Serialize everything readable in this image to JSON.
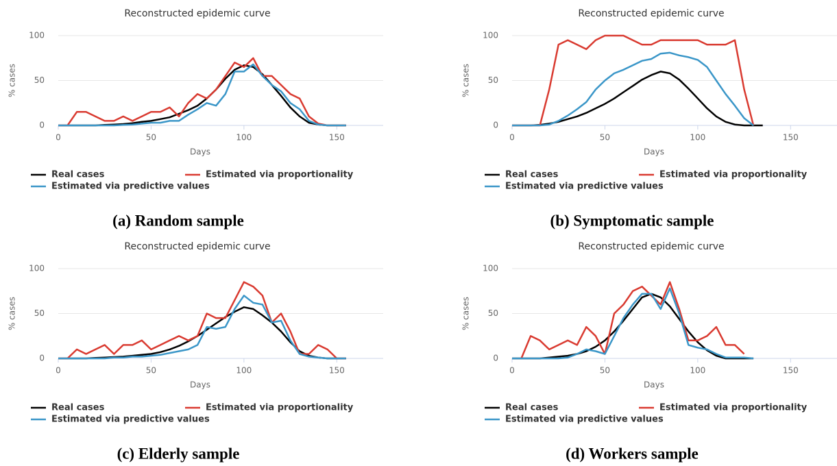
{
  "chart_data": [
    {
      "type": "line",
      "title": "Reconstructed epidemic curve",
      "x_label": "Days",
      "y_label": "% cases",
      "caption": "(a) Random sample",
      "x": [
        0,
        5,
        10,
        15,
        20,
        25,
        30,
        35,
        40,
        45,
        50,
        55,
        60,
        65,
        70,
        75,
        80,
        85,
        90,
        95,
        100,
        105,
        110,
        115,
        120,
        125,
        130,
        135,
        140,
        145,
        150,
        155
      ],
      "xlim": [
        0,
        175
      ],
      "xticks": [
        0,
        50,
        100,
        150
      ],
      "ylim": [
        0,
        100
      ],
      "yticks": [
        0,
        50,
        100
      ],
      "grid": true,
      "series": [
        {
          "name": "Real cases",
          "color": "#000000",
          "values": [
            0,
            0,
            0,
            0,
            0,
            0.5,
            1,
            1.5,
            2.5,
            4,
            5,
            7,
            9,
            13,
            17,
            22,
            30,
            40,
            52,
            62,
            67,
            65,
            57,
            45,
            33,
            20,
            10,
            3,
            1,
            0,
            0,
            0
          ]
        },
        {
          "name": "Estimated via proportionality",
          "color": "#d93a30",
          "values": [
            0,
            0,
            15,
            15,
            10,
            5,
            5,
            10,
            5,
            10,
            15,
            15,
            20,
            10,
            25,
            35,
            30,
            40,
            55,
            70,
            65,
            75,
            55,
            55,
            45,
            35,
            30,
            10,
            2,
            0,
            0,
            0
          ]
        },
        {
          "name": "Estimated via predictive values",
          "color": "#3a96c8",
          "values": [
            0,
            0,
            0,
            0,
            0,
            0,
            0,
            0.5,
            1,
            2,
            3,
            3,
            5,
            5,
            12,
            18,
            25,
            22,
            35,
            60,
            60,
            68,
            55,
            45,
            38,
            25,
            18,
            5,
            1,
            0,
            0,
            0
          ]
        }
      ]
    },
    {
      "type": "line",
      "title": "Reconstructed epidemic curve",
      "x_label": "Days",
      "y_label": "% cases",
      "caption": "(b) Symptomatic sample",
      "x": [
        0,
        5,
        10,
        15,
        20,
        25,
        30,
        35,
        40,
        45,
        50,
        55,
        60,
        65,
        70,
        75,
        80,
        85,
        90,
        95,
        100,
        105,
        110,
        115,
        120,
        125,
        130,
        135
      ],
      "xlim": [
        0,
        175
      ],
      "xticks": [
        0,
        50,
        100,
        150
      ],
      "ylim": [
        0,
        100
      ],
      "yticks": [
        0,
        50,
        100
      ],
      "grid": true,
      "series": [
        {
          "name": "Real cases",
          "color": "#000000",
          "values": [
            0,
            0,
            0,
            0.5,
            2,
            4,
            7,
            10,
            14,
            19,
            24,
            30,
            37,
            44,
            51,
            56,
            60,
            58,
            51,
            41,
            30,
            19,
            10,
            4,
            1,
            0,
            0,
            0
          ]
        },
        {
          "name": "Estimated via proportionality",
          "color": "#d93a30",
          "values": [
            0,
            0,
            0,
            0,
            40,
            90,
            95,
            90,
            85,
            95,
            100,
            100,
            100,
            95,
            90,
            90,
            95,
            95,
            95,
            95,
            95,
            90,
            90,
            90,
            95,
            40,
            0,
            null
          ]
        },
        {
          "name": "Estimated via predictive values",
          "color": "#3a96c8",
          "values": [
            0,
            0,
            0,
            0,
            1,
            5,
            11,
            18,
            26,
            40,
            50,
            58,
            62,
            67,
            72,
            74,
            80,
            81,
            78,
            76,
            73,
            65,
            50,
            35,
            22,
            8,
            0,
            null
          ]
        }
      ]
    },
    {
      "type": "line",
      "title": "Reconstructed epidemic curve",
      "x_label": "Days",
      "y_label": "% cases",
      "caption": "(c) Elderly sample",
      "x": [
        0,
        5,
        10,
        15,
        20,
        25,
        30,
        35,
        40,
        45,
        50,
        55,
        60,
        65,
        70,
        75,
        80,
        85,
        90,
        95,
        100,
        105,
        110,
        115,
        120,
        125,
        130,
        135,
        140,
        145,
        150,
        155
      ],
      "xlim": [
        0,
        175
      ],
      "xticks": [
        0,
        50,
        100,
        150
      ],
      "ylim": [
        0,
        100
      ],
      "yticks": [
        0,
        50,
        100
      ],
      "grid": true,
      "series": [
        {
          "name": "Real cases",
          "color": "#000000",
          "values": [
            0,
            0,
            0,
            0,
            0.5,
            1,
            1.5,
            2,
            3,
            4,
            5,
            7,
            10,
            14,
            19,
            25,
            32,
            39,
            46,
            52,
            57,
            55,
            48,
            40,
            30,
            18,
            8,
            3,
            1,
            0,
            0,
            0
          ]
        },
        {
          "name": "Estimated via proportionality",
          "color": "#d93a30",
          "values": [
            0,
            0,
            10,
            5,
            10,
            15,
            5,
            15,
            15,
            20,
            10,
            15,
            20,
            25,
            20,
            25,
            50,
            45,
            45,
            65,
            85,
            80,
            70,
            40,
            50,
            30,
            5,
            5,
            15,
            10,
            0,
            0
          ]
        },
        {
          "name": "Estimated via predictive values",
          "color": "#3a96c8",
          "values": [
            0,
            0,
            0,
            0,
            0,
            0,
            1,
            1,
            2,
            2,
            3,
            4,
            6,
            8,
            10,
            15,
            35,
            33,
            35,
            55,
            70,
            62,
            60,
            40,
            42,
            20,
            5,
            2,
            1,
            0,
            0,
            0
          ]
        }
      ]
    },
    {
      "type": "line",
      "title": "Reconstructed epidemic curve",
      "x_label": "Days",
      "y_label": "% cases",
      "caption": "(d) Workers sample",
      "x": [
        0,
        5,
        10,
        15,
        20,
        25,
        30,
        35,
        40,
        45,
        50,
        55,
        60,
        65,
        70,
        75,
        80,
        85,
        90,
        95,
        100,
        105,
        110,
        115,
        120,
        125,
        130
      ],
      "xlim": [
        0,
        175
      ],
      "xticks": [
        0,
        50,
        100,
        150
      ],
      "ylim": [
        0,
        100
      ],
      "yticks": [
        0,
        50,
        100
      ],
      "grid": true,
      "series": [
        {
          "name": "Real cases",
          "color": "#000000",
          "values": [
            0,
            0,
            0,
            0,
            1,
            2,
            3,
            5,
            8,
            13,
            20,
            30,
            42,
            55,
            68,
            72,
            68,
            58,
            44,
            30,
            18,
            9,
            3,
            0,
            0,
            0,
            0
          ]
        },
        {
          "name": "Estimated via proportionality",
          "color": "#d93a30",
          "values": [
            null,
            0,
            25,
            20,
            10,
            15,
            20,
            15,
            35,
            25,
            5,
            50,
            60,
            75,
            80,
            70,
            60,
            85,
            55,
            20,
            20,
            25,
            35,
            15,
            15,
            5,
            null
          ]
        },
        {
          "name": "Estimated via predictive values",
          "color": "#3a96c8",
          "values": [
            0,
            0,
            0,
            0,
            0,
            0,
            1,
            5,
            10,
            8,
            5,
            25,
            45,
            60,
            72,
            72,
            55,
            78,
            50,
            15,
            12,
            10,
            5,
            1,
            1,
            1,
            0
          ]
        }
      ]
    }
  ]
}
